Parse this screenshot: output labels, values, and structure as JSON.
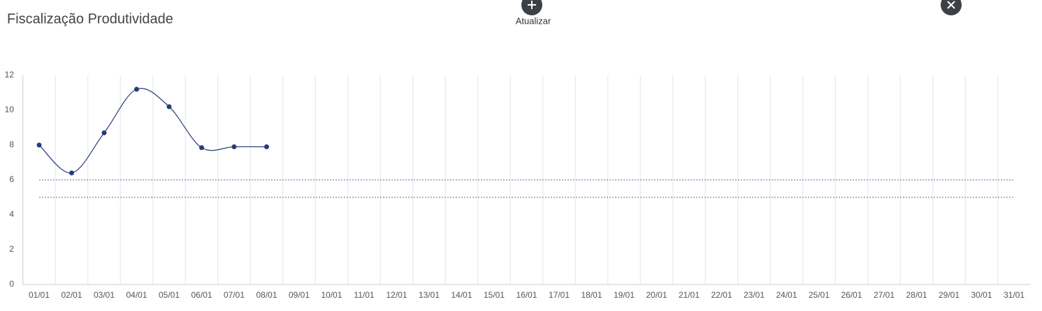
{
  "header": {
    "title": "Fiscalização Produtividade",
    "button_label": "Atualizar"
  },
  "chart_data": {
    "type": "line",
    "categories": [
      "01/01",
      "02/01",
      "03/01",
      "04/01",
      "05/01",
      "06/01",
      "07/01",
      "08/01",
      "09/01",
      "10/01",
      "11/01",
      "12/01",
      "13/01",
      "14/01",
      "15/01",
      "16/01",
      "17/01",
      "18/01",
      "19/01",
      "20/01",
      "21/01",
      "22/01",
      "23/01",
      "24/01",
      "25/01",
      "26/01",
      "27/01",
      "28/01",
      "29/01",
      "30/01",
      "31/01"
    ],
    "series": [
      {
        "color": "#253d7a",
        "values": [
          8,
          6.4,
          8.7,
          11.2,
          10.2,
          7.85,
          7.9,
          7.9,
          null,
          null,
          null,
          null,
          null,
          null,
          null,
          null,
          null,
          null,
          null,
          null,
          null,
          null,
          null,
          null,
          null,
          null,
          null,
          null,
          null,
          null,
          null
        ]
      }
    ],
    "reference_lines": {
      "values": [
        6,
        5
      ],
      "color": "#4a6fa8"
    },
    "ylim": [
      0,
      12
    ],
    "yticks": [
      0,
      2,
      4,
      6,
      8,
      10,
      12
    ],
    "grid": "x"
  }
}
